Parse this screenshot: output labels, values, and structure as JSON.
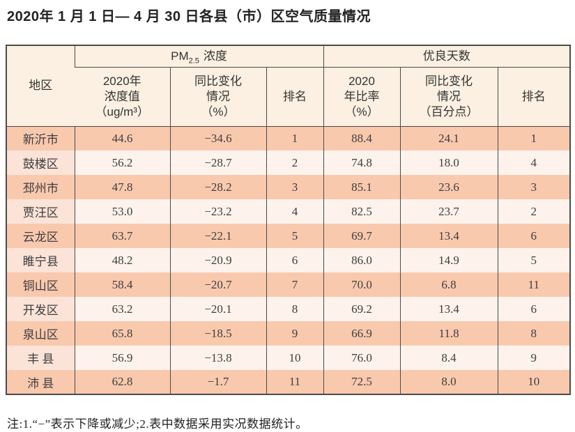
{
  "title": "2020年 1 月 1 日— 4 月 30 日各县（市）区空气质量情况",
  "table": {
    "headers": {
      "region": "地区",
      "pm_group": {
        "prefix": "PM",
        "sub": "2.5",
        "label": "浓度"
      },
      "days_group": "优良天数",
      "pm_value": "2020年\n浓度值\n（ug/m³）",
      "pm_change": "同比变化\n情况\n（%）",
      "pm_rank": "排名",
      "days_rate": "2020\n年比率\n（%）",
      "days_change": "同比变化\n情况\n（百分点）",
      "days_rank": "排名"
    },
    "rows": [
      {
        "region": "新沂市",
        "pm_value": "44.6",
        "pm_change": "−34.6",
        "pm_rank": "1",
        "days_rate": "88.4",
        "days_change": "24.1",
        "days_rank": "1"
      },
      {
        "region": "鼓楼区",
        "pm_value": "56.2",
        "pm_change": "−28.7",
        "pm_rank": "2",
        "days_rate": "74.8",
        "days_change": "18.0",
        "days_rank": "4"
      },
      {
        "region": "邳州市",
        "pm_value": "47.8",
        "pm_change": "−28.2",
        "pm_rank": "3",
        "days_rate": "85.1",
        "days_change": "23.6",
        "days_rank": "3"
      },
      {
        "region": "贾汪区",
        "pm_value": "53.0",
        "pm_change": "−23.2",
        "pm_rank": "4",
        "days_rate": "82.5",
        "days_change": "23.7",
        "days_rank": "2"
      },
      {
        "region": "云龙区",
        "pm_value": "63.7",
        "pm_change": "−22.1",
        "pm_rank": "5",
        "days_rate": "69.7",
        "days_change": "13.4",
        "days_rank": "6"
      },
      {
        "region": "睢宁县",
        "pm_value": "48.2",
        "pm_change": "−20.9",
        "pm_rank": "6",
        "days_rate": "86.0",
        "days_change": "14.9",
        "days_rank": "5"
      },
      {
        "region": "铜山区",
        "pm_value": "58.4",
        "pm_change": "−20.7",
        "pm_rank": "7",
        "days_rate": "70.0",
        "days_change": "6.8",
        "days_rank": "11"
      },
      {
        "region": "开发区",
        "pm_value": "63.2",
        "pm_change": "−20.1",
        "pm_rank": "8",
        "days_rate": "69.2",
        "days_change": "13.4",
        "days_rank": "6"
      },
      {
        "region": "泉山区",
        "pm_value": "65.8",
        "pm_change": "−18.5",
        "pm_rank": "9",
        "days_rate": "66.9",
        "days_change": "11.8",
        "days_rank": "8"
      },
      {
        "region": "丰 县",
        "pm_value": "56.9",
        "pm_change": "−13.8",
        "pm_rank": "10",
        "days_rate": "76.0",
        "days_change": "8.4",
        "days_rank": "9"
      },
      {
        "region": "沛 县",
        "pm_value": "62.8",
        "pm_change": "−1.7",
        "pm_rank": "11",
        "days_rate": "72.5",
        "days_change": "8.0",
        "days_rank": "10"
      }
    ]
  },
  "note": "注:1.“−”表示下降或减少;2.表中数据采用实况数据统计。",
  "colors": {
    "header_bg": "#fbf0e1",
    "row_odd_bg": "#f9c9ae",
    "row_even_bg": "#fdf3ec",
    "region_even_bg": "#fbe3d8",
    "border": "#4a4a4a"
  }
}
